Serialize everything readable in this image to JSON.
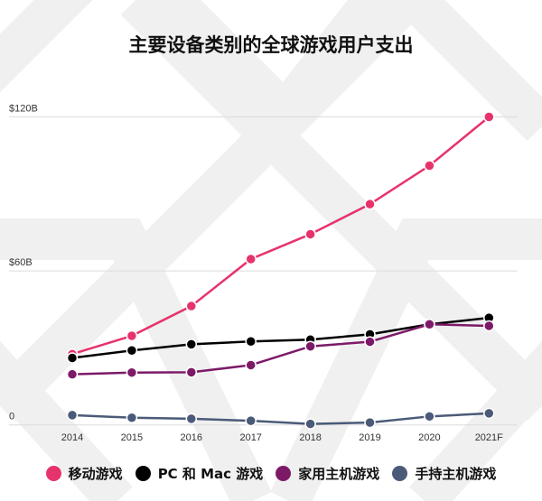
{
  "chart_data": {
    "type": "line",
    "title": "主要设备类别的全球游戏用户支出",
    "xlabel": "",
    "ylabel": "",
    "categories": [
      "2014",
      "2015",
      "2016",
      "2017",
      "2018",
      "2019",
      "2020",
      "2021F"
    ],
    "ylim": [
      0,
      120
    ],
    "yticks": [
      {
        "value": 0,
        "label": "0"
      },
      {
        "value": 60,
        "label": "$60B"
      },
      {
        "value": 120,
        "label": "$120B"
      }
    ],
    "grid": true,
    "legend_position": "bottom",
    "series": [
      {
        "name": "移动游戏",
        "color": "#e6336b",
        "values": [
          27.6,
          34.7,
          46.3,
          64.6,
          74.3,
          86.0,
          101.0,
          120.0
        ]
      },
      {
        "name": "PC 和 Mac 游戏",
        "color": "#000000",
        "values": [
          26.1,
          29.0,
          31.4,
          32.5,
          33.2,
          35.3,
          39.2,
          41.7
        ]
      },
      {
        "name": "家用主机游戏",
        "color": "#7d1a68",
        "values": [
          19.7,
          20.4,
          20.5,
          23.3,
          30.6,
          32.4,
          39.2,
          38.6
        ]
      },
      {
        "name": "手持主机游戏",
        "color": "#4a5a78",
        "values": [
          3.8,
          2.8,
          2.4,
          1.6,
          0.4,
          0.9,
          3.3,
          4.5
        ]
      }
    ]
  }
}
